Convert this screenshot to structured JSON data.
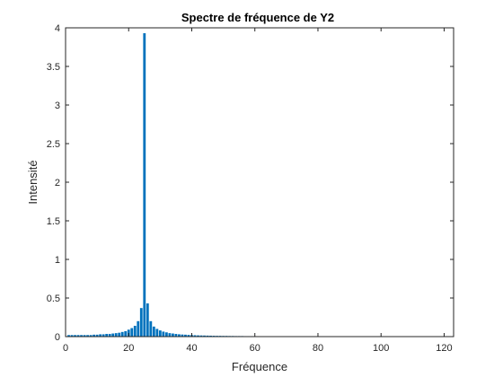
{
  "chart_data": {
    "type": "bar",
    "title": "Spectre de fréquence de Y2",
    "xlabel": "Fréquence",
    "ylabel": "Intensité",
    "xlim": [
      0,
      123
    ],
    "ylim": [
      0,
      4
    ],
    "xticks": [
      0,
      20,
      40,
      60,
      80,
      100,
      120
    ],
    "yticks": [
      0,
      0.5,
      1,
      1.5,
      2,
      2.5,
      3,
      3.5,
      4
    ],
    "ytick_labels": [
      "0",
      "0.5",
      "1",
      "1.5",
      "2",
      "2.5",
      "3",
      "3.5",
      "4"
    ],
    "bar_color": "#0072BD",
    "grid": false,
    "x": [
      1,
      2,
      3,
      4,
      5,
      6,
      7,
      8,
      9,
      10,
      11,
      12,
      13,
      14,
      15,
      16,
      17,
      18,
      19,
      20,
      21,
      22,
      23,
      24,
      25,
      26,
      27,
      28,
      29,
      30,
      31,
      32,
      33,
      34,
      35,
      36,
      37,
      38,
      39,
      40,
      41,
      42,
      43,
      44,
      45,
      46,
      47,
      48,
      49,
      50,
      51,
      52,
      53,
      54,
      55,
      56,
      57,
      58,
      59,
      60,
      61,
      62,
      63,
      64,
      65,
      66,
      67,
      68,
      69,
      70,
      71,
      72,
      73,
      74,
      75,
      76,
      77,
      78,
      79,
      80,
      81,
      82,
      83,
      84,
      85,
      86,
      87,
      88,
      89,
      90,
      91,
      92,
      93,
      94,
      95,
      96,
      97,
      98,
      99,
      100,
      101,
      102,
      103,
      104,
      105,
      106,
      107,
      108,
      109,
      110,
      111,
      112,
      113,
      114,
      115,
      116,
      117,
      118,
      119,
      120,
      121,
      122
    ],
    "values": [
      0.02,
      0.02,
      0.02,
      0.02,
      0.02,
      0.02,
      0.02,
      0.02,
      0.025,
      0.025,
      0.03,
      0.03,
      0.035,
      0.035,
      0.04,
      0.045,
      0.05,
      0.06,
      0.07,
      0.09,
      0.11,
      0.14,
      0.2,
      0.37,
      3.93,
      0.43,
      0.2,
      0.13,
      0.1,
      0.08,
      0.065,
      0.055,
      0.045,
      0.04,
      0.035,
      0.03,
      0.027,
      0.025,
      0.022,
      0.02,
      0.018,
      0.016,
      0.015,
      0.014,
      0.013,
      0.012,
      0.011,
      0.01,
      0.01,
      0.009,
      0.009,
      0.008,
      0.008,
      0.007,
      0.007,
      0.007,
      0.006,
      0.006,
      0.006,
      0.005,
      0.005,
      0.005,
      0.005,
      0.005,
      0.005,
      0.005,
      0.005,
      0.005,
      0.005,
      0.005,
      0.005,
      0.005,
      0.005,
      0.005,
      0.005,
      0.005,
      0.005,
      0.005,
      0.005,
      0.005,
      0.005,
      0.005,
      0.005,
      0.005,
      0.005,
      0.005,
      0.005,
      0.005,
      0.005,
      0.005,
      0.005,
      0.005,
      0.005,
      0.005,
      0.005,
      0.005,
      0.005,
      0.005,
      0.005,
      0.005,
      0.005,
      0.005,
      0.005,
      0.005,
      0.005,
      0.005,
      0.005,
      0.005,
      0.005,
      0.005,
      0.005,
      0.005,
      0.005,
      0.005,
      0.005,
      0.005,
      0.005,
      0.005,
      0.005,
      0.005,
      0.005,
      0.005
    ]
  }
}
